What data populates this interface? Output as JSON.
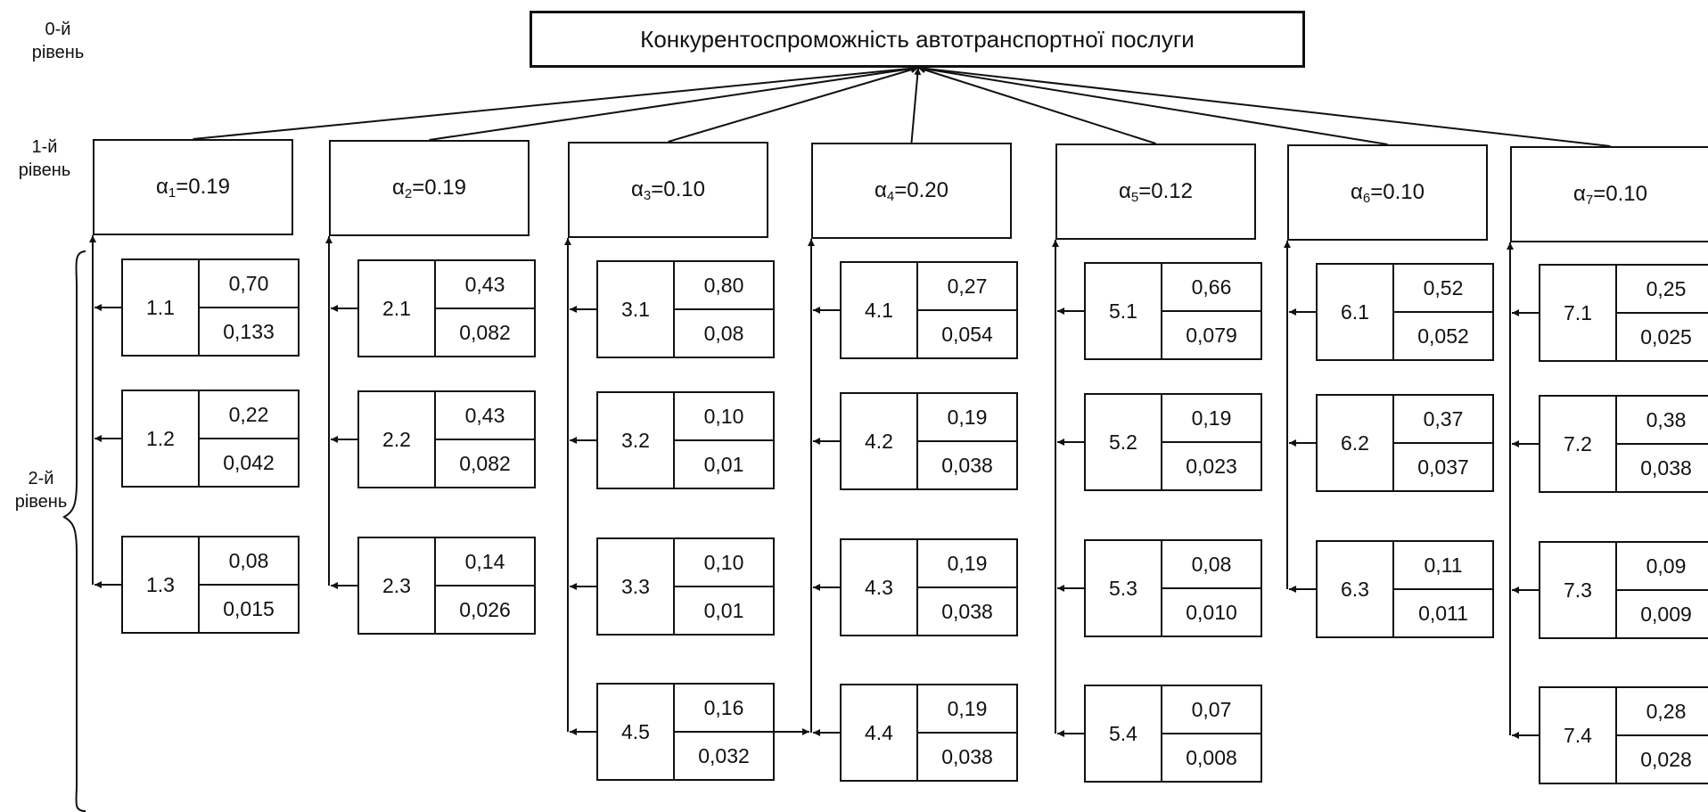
{
  "levels": {
    "l0": [
      "0-й",
      "рівень"
    ],
    "l1": [
      "1-й",
      "рівень"
    ],
    "l2": [
      "2-й",
      "рівень"
    ]
  },
  "root": "Конкурентоспроможність автотранспортної послуги",
  "criteria": [
    {
      "symbol": "α",
      "index": "1",
      "value": "=0.19"
    },
    {
      "symbol": "α",
      "index": "2",
      "value": "=0.19"
    },
    {
      "symbol": "α",
      "index": "3",
      "value": "=0.10"
    },
    {
      "symbol": "α",
      "index": "4",
      "value": "=0.20"
    },
    {
      "symbol": "α",
      "index": "5",
      "value": "=0.12"
    },
    {
      "symbol": "α",
      "index": "6",
      "value": "=0.10"
    },
    {
      "symbol": "α",
      "index": "7",
      "value": "=0.10"
    }
  ],
  "columns": [
    [
      {
        "id": "1.1",
        "w": "0,70",
        "g": "0,133"
      },
      {
        "id": "1.2",
        "w": "0,22",
        "g": "0,042"
      },
      {
        "id": "1.3",
        "w": "0,08",
        "g": "0,015"
      }
    ],
    [
      {
        "id": "2.1",
        "w": "0,43",
        "g": "0,082"
      },
      {
        "id": "2.2",
        "w": "0,43",
        "g": "0,082"
      },
      {
        "id": "2.3",
        "w": "0,14",
        "g": "0,026"
      }
    ],
    [
      {
        "id": "3.1",
        "w": "0,80",
        "g": "0,08"
      },
      {
        "id": "3.2",
        "w": "0,10",
        "g": "0,01"
      },
      {
        "id": "3.3",
        "w": "0,10",
        "g": "0,01"
      },
      {
        "id": "4.5",
        "w": "0,16",
        "g": "0,032"
      }
    ],
    [
      {
        "id": "4.1",
        "w": "0,27",
        "g": "0,054"
      },
      {
        "id": "4.2",
        "w": "0,19",
        "g": "0,038"
      },
      {
        "id": "4.3",
        "w": "0,19",
        "g": "0,038"
      },
      {
        "id": "4.4",
        "w": "0,19",
        "g": "0,038"
      }
    ],
    [
      {
        "id": "5.1",
        "w": "0,66",
        "g": "0,079"
      },
      {
        "id": "5.2",
        "w": "0,19",
        "g": "0,023"
      },
      {
        "id": "5.3",
        "w": "0,08",
        "g": "0,010"
      },
      {
        "id": "5.4",
        "w": "0,07",
        "g": "0,008"
      }
    ],
    [
      {
        "id": "6.1",
        "w": "0,52",
        "g": "0,052"
      },
      {
        "id": "6.2",
        "w": "0,37",
        "g": "0,037"
      },
      {
        "id": "6.3",
        "w": "0,11",
        "g": "0,011"
      }
    ],
    [
      {
        "id": "7.1",
        "w": "0,25",
        "g": "0,025"
      },
      {
        "id": "7.2",
        "w": "0,38",
        "g": "0,038"
      },
      {
        "id": "7.3",
        "w": "0,09",
        "g": "0,009"
      },
      {
        "id": "7.4",
        "w": "0,28",
        "g": "0,028"
      }
    ]
  ]
}
